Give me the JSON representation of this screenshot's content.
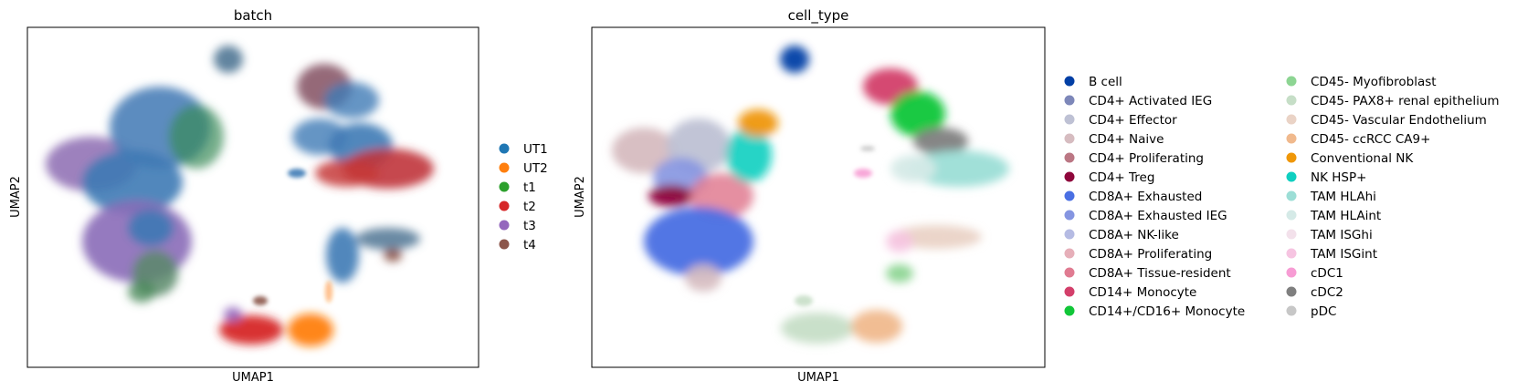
{
  "chart_data": [
    {
      "type": "scatter",
      "title": "batch",
      "xlabel": "UMAP1",
      "ylabel": "UMAP2",
      "grid": false,
      "ticks": false,
      "legend_position": "right",
      "legend": [
        {
          "name": "UT1",
          "color": "#1f77b4"
        },
        {
          "name": "UT2",
          "color": "#ff7f0e"
        },
        {
          "name": "t1",
          "color": "#2ca02c"
        },
        {
          "name": "t2",
          "color": "#d62728"
        },
        {
          "name": "t3",
          "color": "#9467bd"
        },
        {
          "name": "t4",
          "color": "#8c564b"
        }
      ]
    },
    {
      "type": "scatter",
      "title": "cell_type",
      "xlabel": "UMAP1",
      "ylabel": "UMAP2",
      "grid": false,
      "ticks": false,
      "legend_position": "right",
      "legend_columns": 2,
      "legend": [
        {
          "name": "B cell",
          "color": "#023fa5"
        },
        {
          "name": "CD4+ Activated IEG",
          "color": "#7d87b9"
        },
        {
          "name": "CD4+ Effector",
          "color": "#bec1d4"
        },
        {
          "name": "CD4+ Naive",
          "color": "#d6bcc0"
        },
        {
          "name": "CD4+ Proliferating",
          "color": "#bb7784"
        },
        {
          "name": "CD4+ Treg",
          "color": "#8e063b"
        },
        {
          "name": "CD8A+ Exhausted",
          "color": "#4a6fe3"
        },
        {
          "name": "CD8A+ Exhausted IEG",
          "color": "#8595e1"
        },
        {
          "name": "CD8A+ NK-like",
          "color": "#b5bbe3"
        },
        {
          "name": "CD8A+ Proliferating",
          "color": "#e6afb9"
        },
        {
          "name": "CD8A+ Tissue-resident",
          "color": "#e07b91"
        },
        {
          "name": "CD14+ Monocyte",
          "color": "#d33f6a"
        },
        {
          "name": "CD14+/CD16+ Monocyte",
          "color": "#11c638"
        },
        {
          "name": "CD45- Myofibroblast",
          "color": "#8dd593"
        },
        {
          "name": "CD45- PAX8+ renal epithelium",
          "color": "#c6dec7"
        },
        {
          "name": "CD45- Vascular Endothelium",
          "color": "#ead3c6"
        },
        {
          "name": "CD45- ccRCC CA9+",
          "color": "#f0b98d"
        },
        {
          "name": "Conventional NK",
          "color": "#ef9708"
        },
        {
          "name": "NK HSP+",
          "color": "#0fcfc0"
        },
        {
          "name": "TAM HLAhi",
          "color": "#9cded6"
        },
        {
          "name": "TAM HLAint",
          "color": "#d5eae7"
        },
        {
          "name": "TAM ISGhi",
          "color": "#f3e1eb"
        },
        {
          "name": "TAM ISGint",
          "color": "#f6c4e1"
        },
        {
          "name": "cDC1",
          "color": "#f79cd4"
        },
        {
          "name": "cDC2",
          "color": "#7f7f7f"
        },
        {
          "name": "pDC",
          "color": "#c7c7c7"
        }
      ]
    }
  ]
}
